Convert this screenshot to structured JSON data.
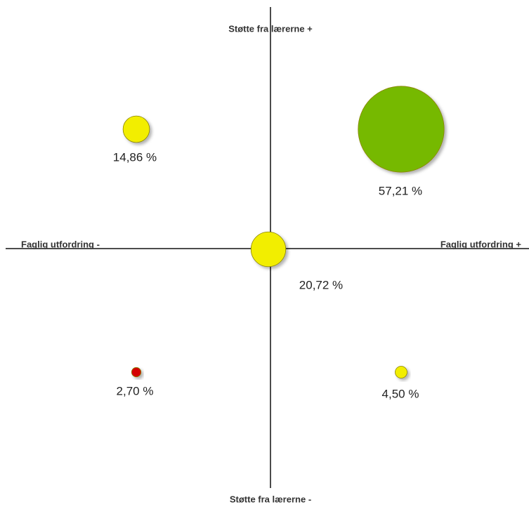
{
  "chart_data": {
    "type": "bubble",
    "axis_labels": {
      "top": "Støtte fra lærerne +",
      "bottom": "Støtte fra lærerne -",
      "left": "Faglig utfordring -",
      "right": "Faglig utfordring +"
    },
    "values": [
      14.86,
      57.21,
      20.72,
      2.7,
      4.5
    ],
    "value_labels": [
      "14,86 %",
      "57,21 %",
      "20,72 %",
      "2,70 %",
      "4,50 %"
    ],
    "colors": [
      "#f2ee00",
      "#76b900",
      "#f2ee00",
      "#d40000",
      "#f2ee00"
    ]
  }
}
